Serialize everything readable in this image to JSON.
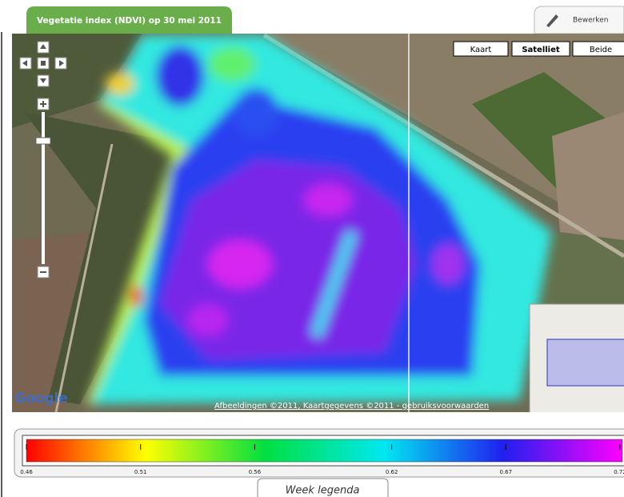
{
  "tab": {
    "title": "Vegetatie index (NDVI) op 30 mei 2011"
  },
  "toolbar": {
    "edit_button": "Bewerken"
  },
  "map": {
    "type_buttons": [
      "Kaart",
      "Satelliet",
      "Beide"
    ],
    "attribution": "Afbeeldingen ©2011, Kaartgegevens ©2011 - gebruiksvoorwaarden",
    "logo": "Google"
  },
  "legend": {
    "title": "Week legenda",
    "ticks": [
      0.46,
      0.51,
      0.56,
      0.62,
      0.67,
      0.72
    ],
    "colors": [
      "#ff0000",
      "#ffff00",
      "#00e040",
      "#00e8f0",
      "#2020f0",
      "#ff00ff"
    ]
  }
}
